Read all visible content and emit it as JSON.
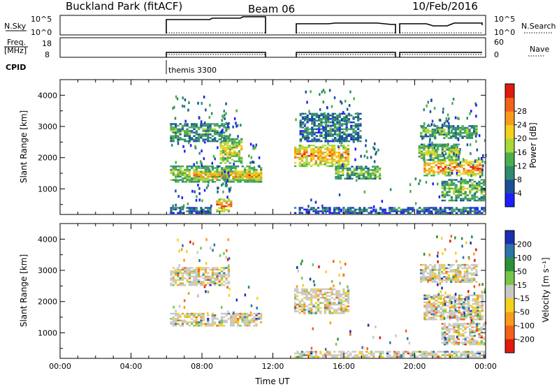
{
  "header": {
    "title": "Buckland Park (fitACF)",
    "beam": "Beam 06",
    "date": "10/Feb/2016"
  },
  "strip": {
    "nsky_label": "N.Sky",
    "nsky_top": "10^5",
    "nsky_bottom": "10^0",
    "nsearch_top": "10^5",
    "nsearch_bottom": "10^0",
    "nsearch_label": "N.Search",
    "freq_label_line1": "Freq.",
    "freq_label_line2": "[MHz]",
    "freq_top": "18",
    "freq_bottom": "8",
    "nave_top": "60",
    "nave_bottom": "0",
    "nave_label": "Nave",
    "cpid_label": "CPID",
    "cpid_value": "themis 3300"
  },
  "chart_data": [
    {
      "type": "heatmap",
      "panel": "power",
      "ylabel": "Slant Range [km]",
      "yticks": [
        1000,
        2000,
        3000,
        4000
      ],
      "ylim": [
        180,
        4500
      ],
      "xlim_hours": [
        0,
        24
      ],
      "colorbar": {
        "label": "Power [dB]",
        "ticks": [
          "4",
          "8",
          "12",
          "16",
          "20",
          "24",
          "28"
        ],
        "colors": [
          "#1d1dff",
          "#1c4f9a",
          "#2f8a6e",
          "#4cae4c",
          "#a8d83a",
          "#f3d21c",
          "#f89b1c",
          "#f2621a",
          "#e01a10"
        ]
      },
      "regions": [
        {
          "t0": 6.2,
          "t1": 11.4,
          "r0": 1200,
          "r1": 1700,
          "level": 0.55
        },
        {
          "t0": 7.5,
          "t1": 11.4,
          "r0": 1250,
          "r1": 1550,
          "level": 0.8
        },
        {
          "t0": 6.2,
          "t1": 9.5,
          "r0": 2500,
          "r1": 3100,
          "level": 0.35
        },
        {
          "t0": 9.0,
          "t1": 10.2,
          "r0": 1800,
          "r1": 2600,
          "level": 0.6
        },
        {
          "t0": 8.8,
          "t1": 9.6,
          "r0": 250,
          "r1": 650,
          "level": 0.85
        },
        {
          "t0": 13.2,
          "t1": 16.2,
          "r0": 1700,
          "r1": 2400,
          "level": 0.8
        },
        {
          "t0": 15.5,
          "t1": 18.0,
          "r0": 1300,
          "r1": 1700,
          "level": 0.45
        },
        {
          "t0": 13.5,
          "t1": 17.0,
          "r0": 2500,
          "r1": 3400,
          "level": 0.25
        },
        {
          "t0": 20.5,
          "t1": 24.0,
          "r0": 1400,
          "r1": 1900,
          "level": 0.85
        },
        {
          "t0": 20.3,
          "t1": 23.5,
          "r0": 2600,
          "r1": 3000,
          "level": 0.4
        },
        {
          "t0": 20.2,
          "t1": 22.5,
          "r0": 1900,
          "r1": 2400,
          "level": 0.55
        },
        {
          "t0": 21.5,
          "t1": 24.0,
          "r0": 600,
          "r1": 1300,
          "level": 0.45
        },
        {
          "t0": 6.2,
          "t1": 8.5,
          "r0": 200,
          "r1": 400,
          "level": 0.2
        },
        {
          "t0": 13.2,
          "t1": 24.0,
          "r0": 200,
          "r1": 420,
          "level": 0.2
        }
      ]
    },
    {
      "type": "heatmap",
      "panel": "velocity",
      "ylabel": "Slant Range [km]",
      "xlabel": "Time UT",
      "yticks": [
        1000,
        2000,
        3000,
        4000
      ],
      "ylim": [
        180,
        4500
      ],
      "xlim_hours": [
        0,
        24
      ],
      "xticks": [
        "00:00",
        "04:00",
        "08:00",
        "12:00",
        "16:00",
        "20:00",
        "00:00"
      ],
      "colorbar": {
        "label": "Velocity [m s⁻¹]",
        "ticks": [
          "200",
          "100",
          "50",
          "15",
          "-15",
          "-50",
          "-100",
          "-200"
        ],
        "colors": [
          "#1c2fb0",
          "#2d74a8",
          "#2c8f3a",
          "#77c64a",
          "#c8c8c4",
          "#f3d21c",
          "#f89b1c",
          "#f2621a",
          "#e01a10"
        ]
      },
      "regions": [
        {
          "t0": 6.2,
          "t1": 11.4,
          "r0": 1200,
          "r1": 1600,
          "level": 0.5
        },
        {
          "t0": 6.2,
          "t1": 9.5,
          "r0": 2500,
          "r1": 3100,
          "level": 0.5
        },
        {
          "t0": 13.2,
          "t1": 16.2,
          "r0": 1600,
          "r1": 2400,
          "level": 0.5
        },
        {
          "t0": 20.5,
          "t1": 24.0,
          "r0": 1400,
          "r1": 2200,
          "level": 0.5
        },
        {
          "t0": 20.3,
          "t1": 23.5,
          "r0": 2600,
          "r1": 3200,
          "level": 0.5
        },
        {
          "t0": 21.5,
          "t1": 24.0,
          "r0": 600,
          "r1": 1300,
          "level": 0.5
        },
        {
          "t0": 13.2,
          "t1": 24.0,
          "r0": 200,
          "r1": 420,
          "level": 0.5
        }
      ]
    }
  ],
  "data_gaps_hours": [
    [
      0,
      6.1
    ],
    [
      11.45,
      13.05
    ],
    [
      18.7,
      18.95
    ]
  ]
}
